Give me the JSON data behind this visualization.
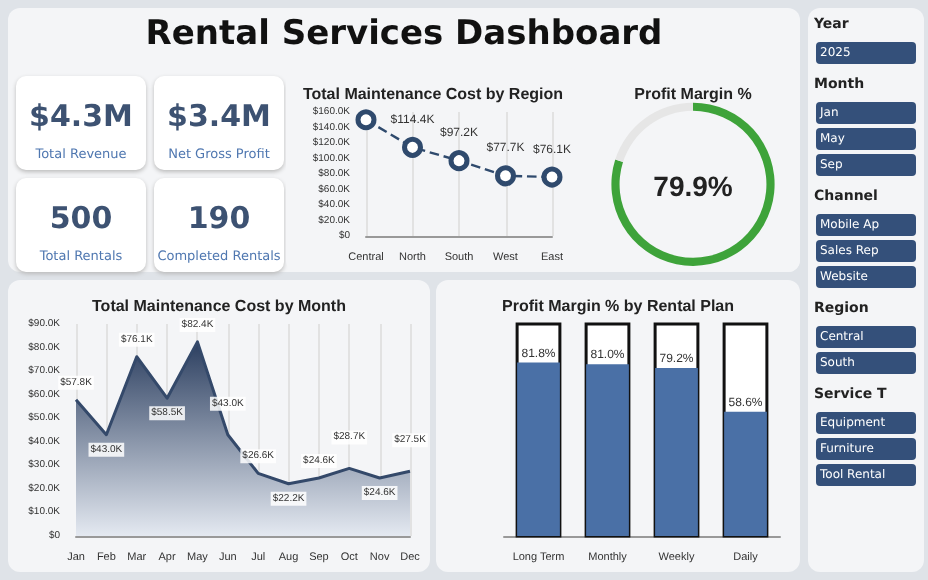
{
  "chart_data": [
    {
      "type": "other",
      "title": "Rental Services Dashboard",
      "annotations": [
        "$4.3M",
        "Total Revenue",
        "$3.4M",
        "Net Gross Profit",
        "500",
        "Total Rentals",
        "190",
        "Completed Rentals"
      ]
    },
    {
      "type": "line",
      "title": "Total Maintenance Cost by Region",
      "categories": [
        "Central",
        "North",
        "South",
        "West",
        "East"
      ],
      "values": [
        150,
        114.4,
        97.2,
        77.7,
        76.1
      ],
      "value_labels": [
        null,
        "$114.4K",
        "$97.2K",
        "$77.7K",
        "$76.1K"
      ],
      "color": "#2f4a6d",
      "marker": "circle",
      "line_style": "dashed",
      "ylim": [
        0,
        160
      ],
      "yticks": [
        {
          "value": 0,
          "label": "$0"
        },
        {
          "value": 20,
          "label": "$20.0K"
        },
        {
          "value": 40,
          "label": "$40.0K"
        },
        {
          "value": 60,
          "label": "$60.0K"
        },
        {
          "value": 80,
          "label": "$80.0K"
        },
        {
          "value": 100,
          "label": "$100.0K"
        },
        {
          "value": 120,
          "label": "$120.0K"
        },
        {
          "value": 140,
          "label": "$140.0K"
        },
        {
          "value": 160,
          "label": "$160.0K"
        }
      ],
      "grid": "x"
    },
    {
      "type": "donut",
      "title": "Profit Margin %",
      "categories": [
        null,
        null
      ],
      "values": [
        79.9,
        20.1
      ],
      "colors": [
        "#3ea33a",
        "#e6e6e6"
      ],
      "annotations": [
        "79.9%"
      ]
    },
    {
      "type": "area",
      "title": "Total Maintenance Cost by Month",
      "categories": [
        "Jan",
        "Feb",
        "Mar",
        "Apr",
        "May",
        "Jun",
        "Jul",
        "Aug",
        "Sep",
        "Oct",
        "Nov",
        "Dec"
      ],
      "values": [
        57.8,
        43.0,
        76.1,
        58.5,
        82.4,
        43.0,
        26.6,
        22.2,
        24.6,
        28.7,
        24.6,
        27.5
      ],
      "value_labels": [
        "$57.8K",
        "$43.0K",
        "$76.1K",
        "$58.5K",
        "$82.4K",
        "$43.0K",
        "$26.6K",
        "$22.2K",
        "$24.6K",
        "$28.7K",
        "$24.6K",
        "$27.5K"
      ],
      "color": "#34496a",
      "ylim": [
        0,
        90
      ],
      "yticks": [
        {
          "value": 0,
          "label": "$0"
        },
        {
          "value": 10,
          "label": "$10.0K"
        },
        {
          "value": 20,
          "label": "$20.0K"
        },
        {
          "value": 30,
          "label": "$30.0K"
        },
        {
          "value": 40,
          "label": "$40.0K"
        },
        {
          "value": 50,
          "label": "$50.0K"
        },
        {
          "value": 60,
          "label": "$60.0K"
        },
        {
          "value": 70,
          "label": "$70.0K"
        },
        {
          "value": 80,
          "label": "$80.0K"
        },
        {
          "value": 90,
          "label": "$90.0K"
        }
      ],
      "grid": "x"
    },
    {
      "type": "bar",
      "title": "Profit Margin % by Rental Plan",
      "categories": [
        "Long Term",
        "Monthly",
        "Weekly",
        "Daily"
      ],
      "values": [
        81.8,
        81.0,
        79.2,
        58.6
      ],
      "value_labels": [
        "81.8%",
        "81.0%",
        "79.2%",
        "58.6%"
      ],
      "color": "#4a70a6",
      "ylim": [
        0,
        100
      ],
      "tick_labels": "x"
    },
    {
      "type": "other",
      "annotations": [
        "Year",
        "2025",
        "Month",
        "Jan",
        "May",
        "Sep",
        "Channel",
        "Mobile Ap",
        "Sales Rep",
        "Website",
        "Region",
        "Central",
        "South",
        "Service T",
        "Equipment",
        "Furniture",
        "Tool Rental"
      ]
    }
  ]
}
